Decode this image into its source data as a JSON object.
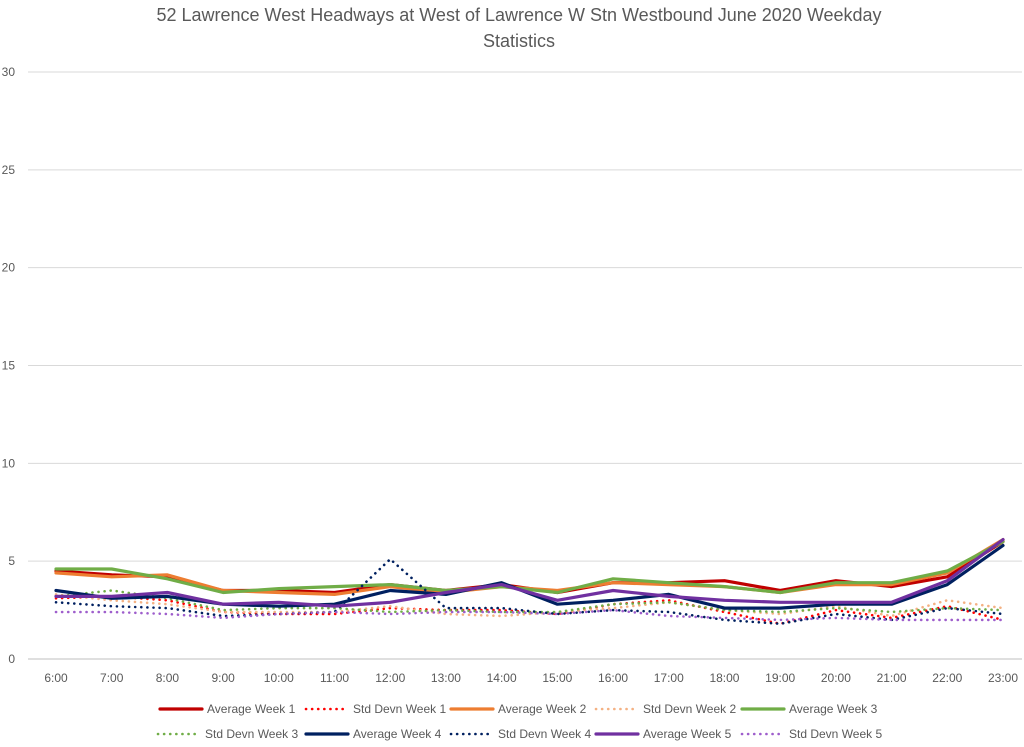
{
  "chart_data": {
    "type": "line",
    "title": "52 Lawrence West Headways at West of Lawrence W Stn Westbound June 2020 Weekday Statistics",
    "title_lines": [
      "52 Lawrence West Headways at West of Lawrence W Stn Westbound June 2020 Weekday",
      "Statistics"
    ],
    "xlabel": "",
    "ylabel": "",
    "ylim": [
      0,
      30
    ],
    "yticks": [
      0,
      5,
      10,
      15,
      20,
      25,
      30
    ],
    "grid": "horizontal",
    "legend_position": "bottom",
    "categories": [
      "6:00",
      "7:00",
      "8:00",
      "9:00",
      "10:00",
      "11:00",
      "12:00",
      "13:00",
      "14:00",
      "15:00",
      "16:00",
      "17:00",
      "18:00",
      "19:00",
      "20:00",
      "21:00",
      "22:00",
      "23:00"
    ],
    "series": [
      {
        "name": "Average Week 1",
        "style": "solid",
        "color": "#c00000",
        "values": [
          4.5,
          4.3,
          4.2,
          3.5,
          3.5,
          3.4,
          3.8,
          3.5,
          3.8,
          3.4,
          3.9,
          3.9,
          4.0,
          3.5,
          4.0,
          3.7,
          4.2,
          6.0
        ]
      },
      {
        "name": "Std Devn Week 1",
        "style": "dotted",
        "color": "#ff0000",
        "values": [
          3.1,
          3.2,
          3.0,
          2.4,
          2.3,
          2.3,
          2.6,
          2.5,
          2.5,
          2.3,
          2.8,
          3.0,
          2.4,
          1.8,
          2.5,
          2.1,
          2.7,
          2.0
        ]
      },
      {
        "name": "Average Week 2",
        "style": "solid",
        "color": "#ed7d31",
        "values": [
          4.4,
          4.2,
          4.3,
          3.5,
          3.4,
          3.3,
          3.7,
          3.4,
          3.7,
          3.5,
          3.9,
          3.8,
          3.7,
          3.4,
          3.8,
          3.8,
          4.4,
          6.1
        ]
      },
      {
        "name": "Std Devn Week 2",
        "style": "dotted",
        "color": "#f4b183",
        "values": [
          3.3,
          3.0,
          2.8,
          2.4,
          2.4,
          2.4,
          2.7,
          2.3,
          2.2,
          2.4,
          2.6,
          2.9,
          2.5,
          2.3,
          2.7,
          2.2,
          3.0,
          2.6
        ]
      },
      {
        "name": "Average Week 3",
        "style": "solid",
        "color": "#70ad47",
        "values": [
          4.6,
          4.6,
          4.1,
          3.4,
          3.6,
          3.7,
          3.8,
          3.5,
          3.7,
          3.4,
          4.1,
          3.9,
          3.7,
          3.4,
          3.9,
          3.9,
          4.5,
          6.0
        ]
      },
      {
        "name": "Std Devn Week 3",
        "style": "dotted",
        "color": "#70ad47",
        "values": [
          3.2,
          3.5,
          3.1,
          2.5,
          2.6,
          2.6,
          2.4,
          2.5,
          2.4,
          2.4,
          2.8,
          2.9,
          2.5,
          2.4,
          2.6,
          2.4,
          2.6,
          2.5
        ]
      },
      {
        "name": "Average Week 4",
        "style": "solid",
        "color": "#002060",
        "values": [
          3.5,
          3.1,
          3.2,
          2.8,
          2.7,
          2.8,
          3.5,
          3.3,
          3.9,
          2.8,
          3.0,
          3.3,
          2.6,
          2.6,
          2.8,
          2.8,
          3.8,
          5.8
        ]
      },
      {
        "name": "Std Devn Week 4",
        "style": "dotted",
        "color": "#002060",
        "values": [
          2.9,
          2.7,
          2.6,
          2.2,
          2.3,
          2.4,
          5.1,
          2.6,
          2.6,
          2.3,
          2.5,
          2.4,
          2.0,
          1.8,
          2.3,
          2.0,
          2.6,
          2.3
        ]
      },
      {
        "name": "Average Week 5",
        "style": "solid",
        "color": "#7030a0",
        "values": [
          3.2,
          3.2,
          3.4,
          2.8,
          2.9,
          2.7,
          2.9,
          3.4,
          3.8,
          3.0,
          3.5,
          3.2,
          3.0,
          2.9,
          2.9,
          2.9,
          4.0,
          6.1
        ]
      },
      {
        "name": "Std Devn Week 5",
        "style": "dotted",
        "color": "#9e5ecc",
        "values": [
          2.4,
          2.4,
          2.3,
          2.1,
          2.3,
          2.4,
          2.3,
          2.4,
          2.4,
          2.3,
          2.5,
          2.2,
          2.1,
          2.0,
          2.1,
          2.0,
          2.0,
          2.0
        ]
      }
    ]
  }
}
